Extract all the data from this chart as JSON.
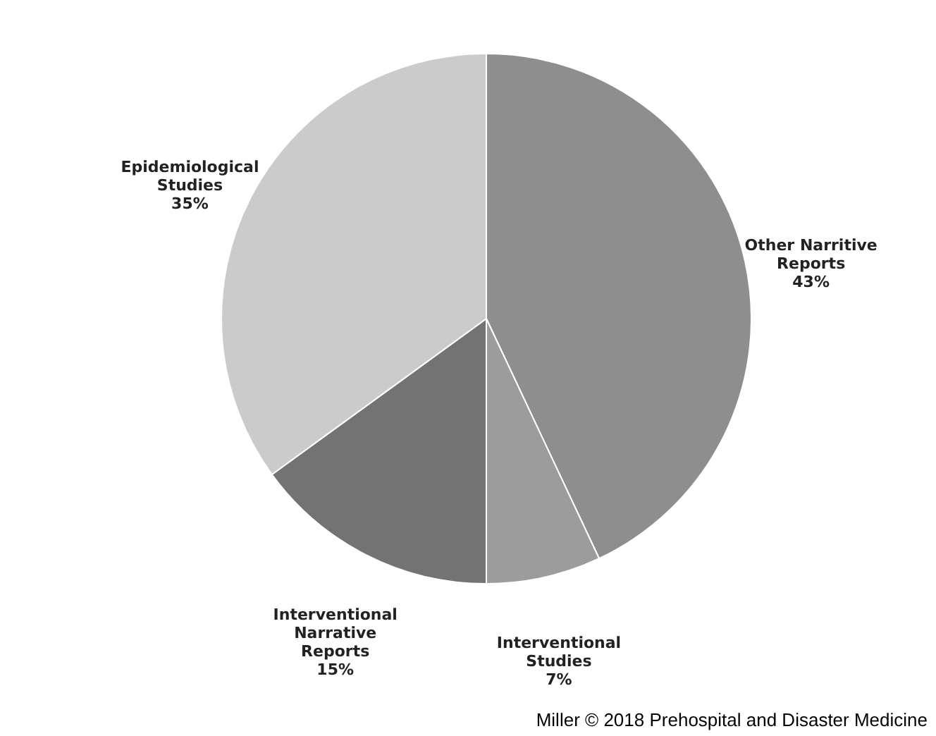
{
  "chart_data": {
    "type": "pie",
    "categories": [
      "Other Narritive Reports",
      "Interventional Studies",
      "Interventional Narrative Reports",
      "Epidemiological Studies"
    ],
    "values": [
      43,
      7,
      15,
      35
    ],
    "value_labels": [
      "43%",
      "7%",
      "15%",
      "35%"
    ],
    "colors": [
      "#8e8e8e",
      "#9c9c9c",
      "#737373",
      "#cbcbcb"
    ],
    "annotations": [
      "Miller © 2018 Prehospital and Disaster Medicine"
    ]
  }
}
